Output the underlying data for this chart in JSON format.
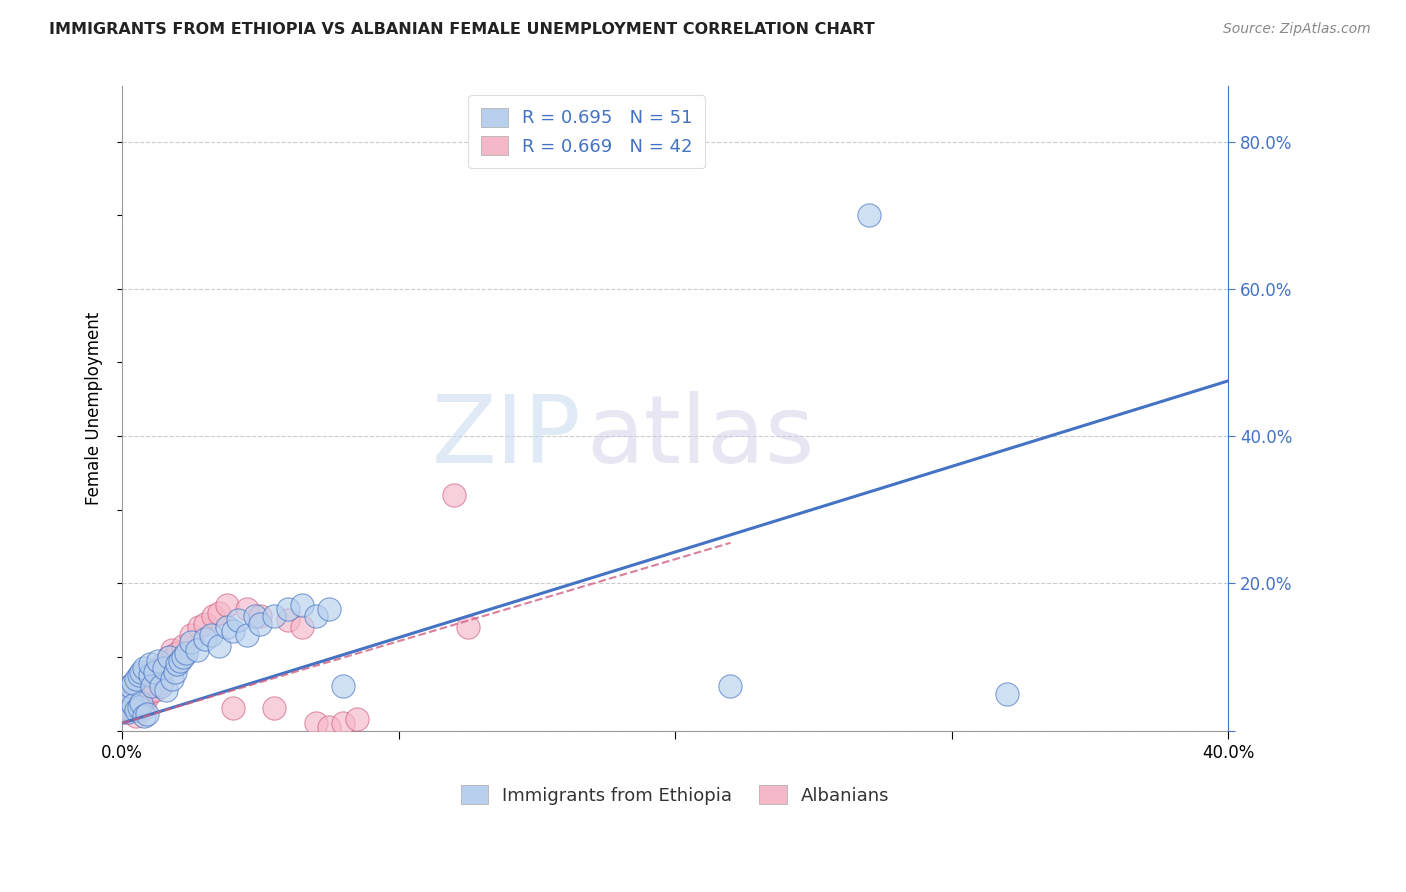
{
  "title": "IMMIGRANTS FROM ETHIOPIA VS ALBANIAN FEMALE UNEMPLOYMENT CORRELATION CHART",
  "source": "Source: ZipAtlas.com",
  "ylabel": "Female Unemployment",
  "xlim": [
    0.0,
    0.4
  ],
  "ylim": [
    0.0,
    0.875
  ],
  "xticks": [
    0.0,
    0.1,
    0.2,
    0.3,
    0.4
  ],
  "xtick_labels": [
    "0.0%",
    "",
    "",
    "",
    "40.0%"
  ],
  "yticks_right": [
    0.0,
    0.2,
    0.4,
    0.6,
    0.8
  ],
  "ytick_labels_right": [
    "",
    "20.0%",
    "40.0%",
    "60.0%",
    "80.0%"
  ],
  "series1_color": "#b8d0ed",
  "series2_color": "#f5b8c8",
  "line1_color": "#4472c4",
  "line2_color": "#d06080",
  "R1": 0.695,
  "N1": 51,
  "R2": 0.669,
  "N2": 42,
  "legend_label1": "Immigrants from Ethiopia",
  "legend_label2": "Albanians",
  "watermark_zip": "ZIP",
  "watermark_atlas": "atlas",
  "background_color": "#ffffff",
  "grid_color": "#cccccc",
  "title_color": "#222222",
  "axis_color": "#4472c4",
  "scatter1_x": [
    0.001,
    0.002,
    0.002,
    0.003,
    0.003,
    0.004,
    0.004,
    0.005,
    0.005,
    0.006,
    0.006,
    0.007,
    0.007,
    0.008,
    0.008,
    0.009,
    0.01,
    0.01,
    0.011,
    0.012,
    0.013,
    0.014,
    0.015,
    0.016,
    0.017,
    0.018,
    0.019,
    0.02,
    0.021,
    0.022,
    0.023,
    0.025,
    0.027,
    0.03,
    0.032,
    0.035,
    0.038,
    0.04,
    0.042,
    0.045,
    0.048,
    0.05,
    0.055,
    0.06,
    0.065,
    0.07,
    0.075,
    0.08,
    0.22,
    0.27,
    0.32
  ],
  "scatter1_y": [
    0.03,
    0.025,
    0.055,
    0.04,
    0.06,
    0.035,
    0.065,
    0.028,
    0.07,
    0.032,
    0.075,
    0.038,
    0.08,
    0.02,
    0.085,
    0.022,
    0.075,
    0.09,
    0.06,
    0.08,
    0.095,
    0.06,
    0.085,
    0.055,
    0.1,
    0.07,
    0.08,
    0.09,
    0.095,
    0.1,
    0.105,
    0.12,
    0.11,
    0.125,
    0.13,
    0.115,
    0.14,
    0.135,
    0.15,
    0.13,
    0.155,
    0.145,
    0.155,
    0.165,
    0.17,
    0.155,
    0.165,
    0.06,
    0.06,
    0.7,
    0.05
  ],
  "scatter2_x": [
    0.001,
    0.002,
    0.002,
    0.003,
    0.003,
    0.004,
    0.005,
    0.005,
    0.006,
    0.007,
    0.007,
    0.008,
    0.009,
    0.01,
    0.011,
    0.012,
    0.013,
    0.014,
    0.015,
    0.016,
    0.017,
    0.018,
    0.02,
    0.022,
    0.025,
    0.028,
    0.03,
    0.033,
    0.035,
    0.038,
    0.04,
    0.045,
    0.05,
    0.055,
    0.06,
    0.065,
    0.07,
    0.075,
    0.08,
    0.085,
    0.12,
    0.125
  ],
  "scatter2_y": [
    0.025,
    0.028,
    0.055,
    0.032,
    0.06,
    0.04,
    0.065,
    0.02,
    0.035,
    0.038,
    0.075,
    0.03,
    0.045,
    0.052,
    0.08,
    0.055,
    0.085,
    0.065,
    0.09,
    0.095,
    0.1,
    0.11,
    0.105,
    0.115,
    0.13,
    0.14,
    0.145,
    0.155,
    0.16,
    0.17,
    0.03,
    0.165,
    0.155,
    0.03,
    0.15,
    0.14,
    0.01,
    0.005,
    0.01,
    0.015,
    0.32,
    0.14
  ],
  "line1_x": [
    0.0,
    0.4
  ],
  "line1_y": [
    0.01,
    0.475
  ],
  "line2_x": [
    0.0,
    0.22
  ],
  "line2_y": [
    0.01,
    0.255
  ]
}
